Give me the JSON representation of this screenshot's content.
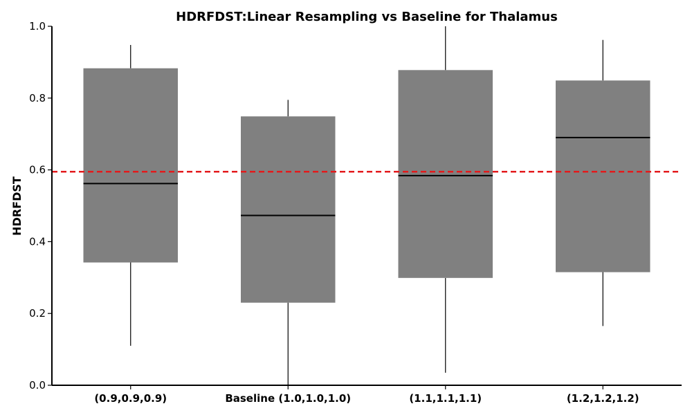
{
  "chart_data": {
    "type": "box",
    "title": "HDRFDST:Linear Resampling vs Baseline for Thalamus",
    "xlabel": "",
    "ylabel": "HDRFDST",
    "ylim": [
      0.0,
      1.0
    ],
    "yticks": [
      "0.0",
      "0.2",
      "0.4",
      "0.6",
      "0.8",
      "1.0"
    ],
    "grid": false,
    "box_color": "#808080",
    "reference_line": {
      "value": 0.595,
      "color": "#e31a1c",
      "style": "dashed"
    },
    "categories": [
      "(0.9,0.9,0.9)",
      "Baseline (1.0,1.0,1.0)",
      "(1.1,1.1,1.1)",
      "(1.2,1.2,1.2)"
    ],
    "boxes": [
      {
        "whisker_low": 0.11,
        "q1": 0.342,
        "median": 0.562,
        "q3": 0.883,
        "whisker_high": 0.948
      },
      {
        "whisker_low": 0.0,
        "q1": 0.23,
        "median": 0.473,
        "q3": 0.749,
        "whisker_high": 0.795
      },
      {
        "whisker_low": 0.035,
        "q1": 0.299,
        "median": 0.584,
        "q3": 0.878,
        "whisker_high": 1.0
      },
      {
        "whisker_low": 0.165,
        "q1": 0.315,
        "median": 0.69,
        "q3": 0.849,
        "whisker_high": 0.962
      }
    ]
  }
}
